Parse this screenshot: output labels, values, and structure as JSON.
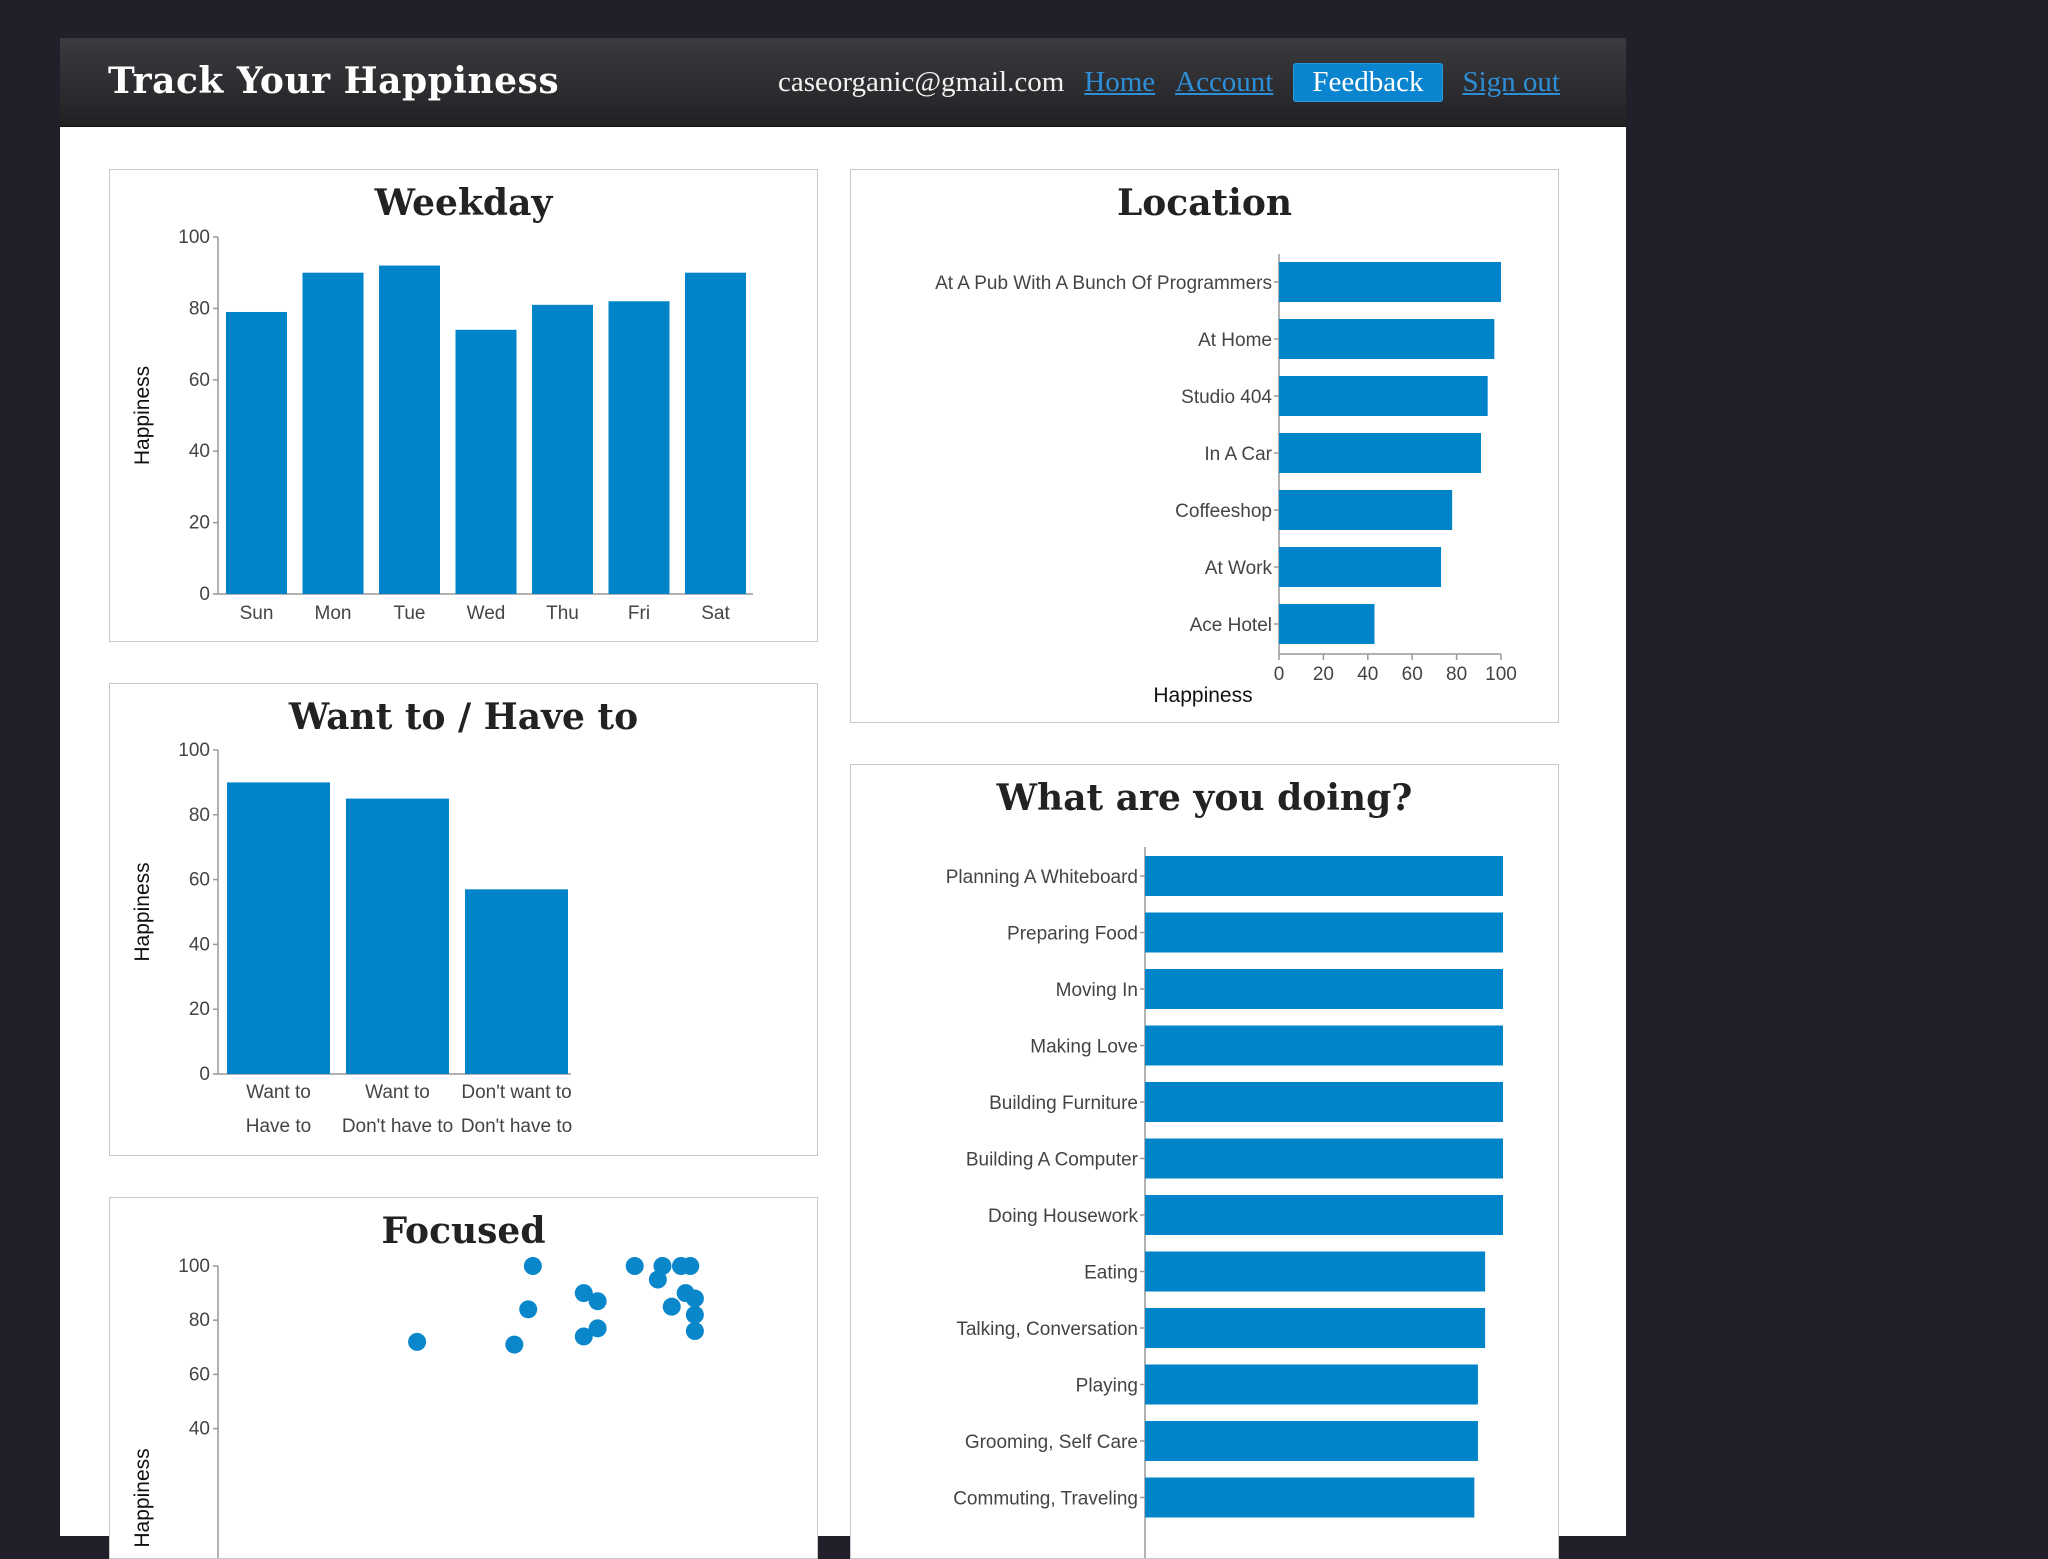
{
  "header": {
    "title": "Track Your Happiness",
    "email": "caseorganic@gmail.com",
    "nav": {
      "home": "Home",
      "account": "Account",
      "feedback": "Feedback",
      "signout": "Sign out"
    }
  },
  "colors": {
    "bar": "#0084c9",
    "header_bg": "#2e2e32",
    "page_bg": "#211f2a",
    "feedback_bg": "#0a84cf"
  },
  "chart_data": [
    {
      "id": "weekday",
      "type": "bar",
      "title": "Weekday",
      "ylabel": "Happiness",
      "ylim": [
        0,
        100
      ],
      "yticks": [
        0,
        20,
        40,
        60,
        80,
        100
      ],
      "categories": [
        "Sun",
        "Mon",
        "Tue",
        "Wed",
        "Thu",
        "Fri",
        "Sat"
      ],
      "values": [
        79,
        90,
        92,
        74,
        81,
        82,
        90
      ]
    },
    {
      "id": "location",
      "type": "bar",
      "orientation": "horizontal",
      "title": "Location",
      "xlabel": "Happiness",
      "xlim": [
        0,
        100
      ],
      "xticks": [
        0,
        20,
        40,
        60,
        80,
        100
      ],
      "categories": [
        "At A Pub With A Bunch Of Programmers",
        "At Home",
        "Studio 404",
        "In A Car",
        "Coffeeshop",
        "At Work",
        "Ace Hotel"
      ],
      "values": [
        100,
        97,
        94,
        91,
        78,
        73,
        43
      ]
    },
    {
      "id": "want",
      "type": "bar",
      "title": "Want to / Have to",
      "ylabel": "Happiness",
      "ylim": [
        0,
        100
      ],
      "yticks": [
        0,
        20,
        40,
        60,
        80,
        100
      ],
      "categories": [
        {
          "line1": "Want to",
          "line2": "Have to"
        },
        {
          "line1": "Want to",
          "line2": "Don't have to"
        },
        {
          "line1": "Don't want to",
          "line2": "Don't have to"
        }
      ],
      "values": [
        90,
        85,
        57
      ]
    },
    {
      "id": "doing",
      "type": "bar",
      "orientation": "horizontal",
      "title": "What are you doing?",
      "xlim": [
        0,
        100
      ],
      "categories": [
        "Planning A Whiteboard",
        "Preparing Food",
        "Moving In",
        "Making Love",
        "Building Furniture",
        "Building A Computer",
        "Doing Housework",
        "Eating",
        "Talking, Conversation",
        "Playing",
        "Grooming, Self Care",
        "Commuting, Traveling"
      ],
      "values": [
        100,
        100,
        100,
        100,
        100,
        100,
        100,
        95,
        95,
        93,
        93,
        92
      ]
    },
    {
      "id": "focused",
      "type": "scatter",
      "title": "Focused",
      "ylabel": "Happiness",
      "xlim": [
        0,
        100
      ],
      "ylim": [
        0,
        100
      ],
      "yticks": [
        40,
        60,
        80,
        100
      ],
      "points": [
        [
          43,
          72
        ],
        [
          64,
          71
        ],
        [
          67,
          84
        ],
        [
          68,
          100
        ],
        [
          79,
          74
        ],
        [
          79,
          90
        ],
        [
          82,
          77
        ],
        [
          82,
          87
        ],
        [
          90,
          100
        ],
        [
          95,
          95
        ],
        [
          96,
          100
        ],
        [
          98,
          85
        ],
        [
          100,
          100
        ],
        [
          101,
          90
        ],
        [
          102,
          100
        ],
        [
          103,
          88
        ],
        [
          103,
          82
        ],
        [
          103,
          76
        ]
      ]
    }
  ]
}
